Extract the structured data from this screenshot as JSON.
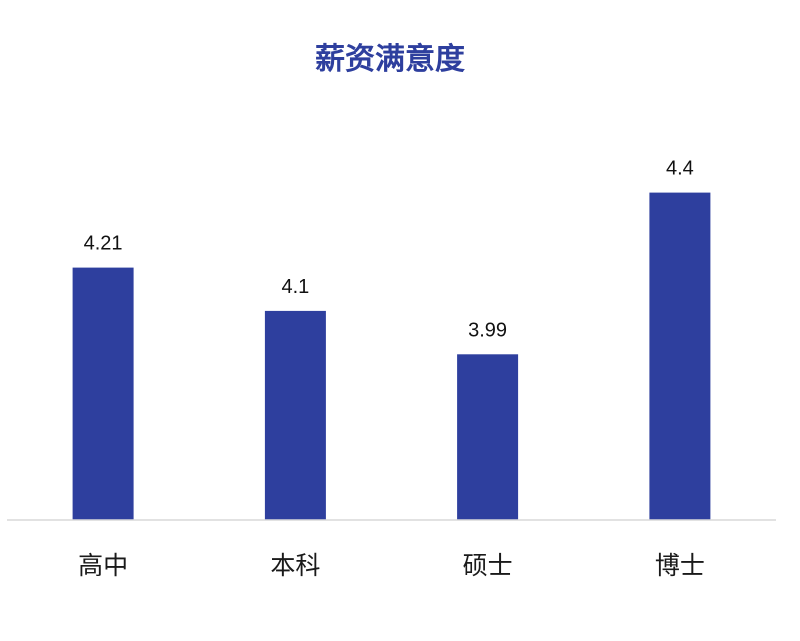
{
  "chart_data": {
    "type": "bar",
    "title": "薪资满意度",
    "categories": [
      "高中",
      "本科",
      "硕士",
      "博士"
    ],
    "values": [
      4.21,
      4.1,
      3.99,
      4.4
    ],
    "data_labels": [
      "4.21",
      "4.1",
      "3.99",
      "4.4"
    ],
    "ylim": [
      3.57,
      4.47
    ],
    "grid": false,
    "legend": "none",
    "xlabel": "",
    "ylabel": ""
  },
  "colors": {
    "bar": "#2e3f9e",
    "title": "#2e3f9e",
    "axis": "#d9d9d9"
  }
}
